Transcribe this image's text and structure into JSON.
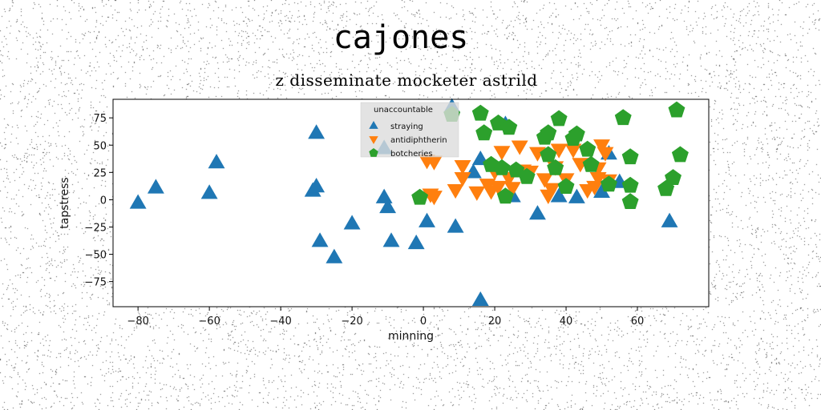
{
  "chart_data": {
    "type": "scatter",
    "title": "cajones",
    "subtitle": "z disseminate mocketer astrild",
    "xlabel": "minning",
    "ylabel": "tapstress",
    "xlim": [
      -87,
      80
    ],
    "ylim": [
      -98,
      92
    ],
    "xticks": [
      -80,
      -60,
      -40,
      -20,
      0,
      20,
      40,
      60
    ],
    "yticks": [
      -75,
      -50,
      -25,
      0,
      25,
      50,
      75
    ],
    "grid": false,
    "legend": {
      "title": "unaccountable",
      "position": "top-center"
    },
    "series": [
      {
        "name": "straying",
        "color": "#1f77b4",
        "marker": "triangle-up",
        "points": [
          [
            -80,
            -3
          ],
          [
            -75,
            11
          ],
          [
            -60,
            6
          ],
          [
            -58,
            34
          ],
          [
            -30,
            61
          ],
          [
            -31,
            8
          ],
          [
            -30,
            12
          ],
          [
            -29,
            -38
          ],
          [
            -25,
            -53
          ],
          [
            -20,
            -22
          ],
          [
            -11,
            2
          ],
          [
            -10,
            -7
          ],
          [
            -9,
            -38
          ],
          [
            -11,
            47
          ],
          [
            1,
            -20
          ],
          [
            -2,
            -40
          ],
          [
            9,
            -25
          ],
          [
            8,
            85
          ],
          [
            16,
            37
          ],
          [
            14,
            25
          ],
          [
            23,
            69
          ],
          [
            25,
            3
          ],
          [
            32,
            -13
          ],
          [
            38,
            3
          ],
          [
            43,
            2
          ],
          [
            50,
            7
          ],
          [
            52,
            42
          ],
          [
            55,
            16
          ],
          [
            69,
            -20
          ],
          [
            16,
            -92
          ]
        ]
      },
      {
        "name": "antidiphtherin",
        "color": "#ff7f0e",
        "marker": "triangle-down",
        "points": [
          [
            1,
            36
          ],
          [
            3,
            35
          ],
          [
            2,
            5
          ],
          [
            3,
            3
          ],
          [
            9,
            9
          ],
          [
            11,
            31
          ],
          [
            11,
            20
          ],
          [
            15,
            7
          ],
          [
            18,
            14
          ],
          [
            19,
            8
          ],
          [
            20,
            26
          ],
          [
            21,
            12
          ],
          [
            22,
            44
          ],
          [
            24,
            20
          ],
          [
            25,
            11
          ],
          [
            27,
            49
          ],
          [
            28,
            27
          ],
          [
            30,
            26
          ],
          [
            32,
            43
          ],
          [
            34,
            19
          ],
          [
            35,
            4
          ],
          [
            36,
            10
          ],
          [
            37,
            30
          ],
          [
            38,
            46
          ],
          [
            40,
            19
          ],
          [
            42,
            46
          ],
          [
            44,
            33
          ],
          [
            46,
            9
          ],
          [
            48,
            12
          ],
          [
            49,
            20
          ],
          [
            49,
            29
          ],
          [
            50,
            50
          ],
          [
            51,
            43
          ],
          [
            52,
            18
          ]
        ]
      },
      {
        "name": "botcheries",
        "color": "#2ca02c",
        "marker": "pentagon",
        "points": [
          [
            -1,
            2
          ],
          [
            8,
            78
          ],
          [
            16,
            79
          ],
          [
            17,
            61
          ],
          [
            19,
            32
          ],
          [
            21,
            70
          ],
          [
            22,
            29
          ],
          [
            23,
            3
          ],
          [
            24,
            66
          ],
          [
            26,
            27
          ],
          [
            29,
            21
          ],
          [
            34,
            57
          ],
          [
            35,
            61
          ],
          [
            35,
            41
          ],
          [
            37,
            29
          ],
          [
            38,
            74
          ],
          [
            40,
            12
          ],
          [
            42,
            56
          ],
          [
            43,
            60
          ],
          [
            46,
            46
          ],
          [
            47,
            32
          ],
          [
            52,
            14
          ],
          [
            56,
            75
          ],
          [
            58,
            39
          ],
          [
            58,
            13
          ],
          [
            58,
            -2
          ],
          [
            68,
            10
          ],
          [
            70,
            20
          ],
          [
            71,
            82
          ],
          [
            72,
            41
          ]
        ]
      }
    ]
  }
}
